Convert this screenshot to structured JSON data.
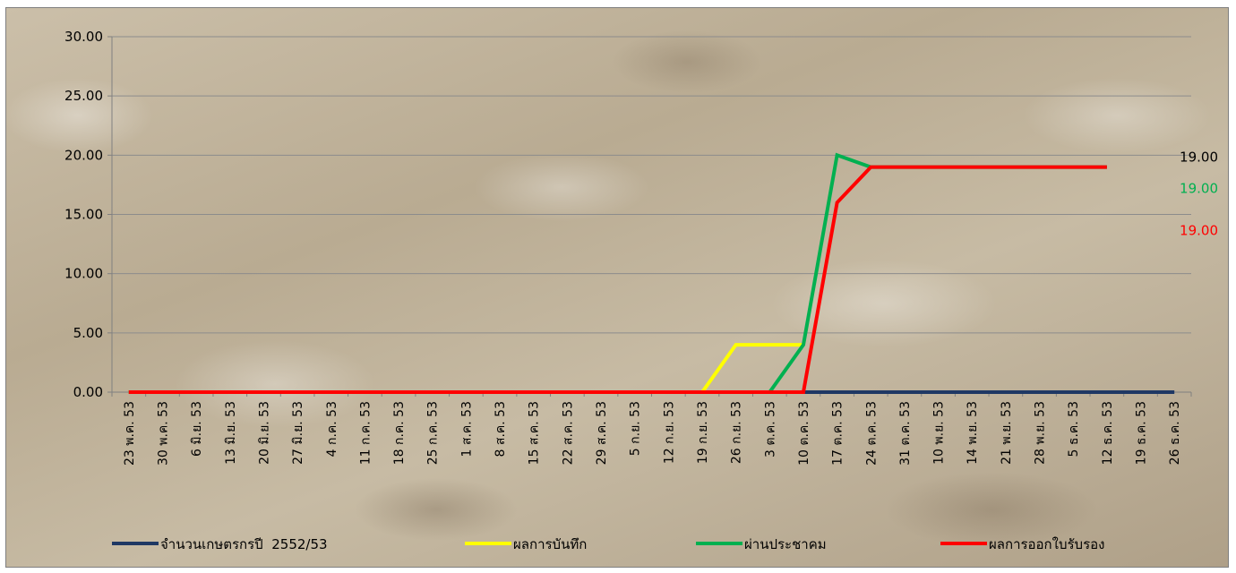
{
  "chart_data": {
    "type": "line",
    "title": "",
    "xlabel": "",
    "ylabel": "",
    "ylim": [
      0,
      30
    ],
    "y_ticks": [
      "0.00",
      "5.00",
      "10.00",
      "15.00",
      "20.00",
      "25.00",
      "30.00"
    ],
    "grid": true,
    "legend_position": "bottom",
    "categories": [
      "23 พ.ค. 53",
      "30 พ.ค. 53",
      "6 มิ.ย. 53",
      "13 มิ.ย. 53",
      "20 มิ.ย. 53",
      "27 มิ.ย. 53",
      "4 ก.ค. 53",
      "11 ก.ค. 53",
      "18 ก.ค. 53",
      "25 ก.ค. 53",
      "1 ส.ค. 53",
      "8 ส.ค. 53",
      "15 ส.ค. 53",
      "22 ส.ค. 53",
      "29 ส.ค. 53",
      "5 ก.ย. 53",
      "12 ก.ย. 53",
      "19 ก.ย. 53",
      "26 ก.ย. 53",
      "3 ต.ค. 53",
      "10 ต.ค. 53",
      "17 ต.ค. 53",
      "24 ต.ค. 53",
      "31 ต.ค. 53",
      "10 พ.ย. 53",
      "14 พ.ย. 53",
      "21 พ.ย. 53",
      "28 พ.ย. 53",
      "5 ธ.ค. 53",
      "12 ธ.ค. 53",
      "19 ธ.ค. 53",
      "26 ธ.ค. 53"
    ],
    "series": [
      {
        "name": "จำนวนเกษตรกรปี  2552/53",
        "color": "#1f3864",
        "values": [
          0,
          0,
          0,
          0,
          0,
          0,
          0,
          0,
          0,
          0,
          0,
          0,
          0,
          0,
          0,
          0,
          0,
          0,
          0,
          0,
          0,
          0,
          0,
          0,
          0,
          0,
          0,
          0,
          0,
          0,
          0,
          0
        ]
      },
      {
        "name": "ผลการบันทึก",
        "color": "#ffff00",
        "values": [
          0,
          0,
          0,
          0,
          0,
          0,
          0,
          0,
          0,
          0,
          0,
          0,
          0,
          0,
          0,
          0,
          0,
          0,
          4,
          4,
          4,
          null,
          null,
          null,
          null,
          null,
          null,
          null,
          null,
          null,
          null,
          null
        ]
      },
      {
        "name": "ผ่านประชาคม",
        "color": "#00b050",
        "values": [
          0,
          0,
          0,
          0,
          0,
          0,
          0,
          0,
          0,
          0,
          0,
          0,
          0,
          0,
          0,
          0,
          0,
          0,
          0,
          0,
          4,
          20,
          19,
          19,
          19,
          19,
          19,
          19,
          19,
          19,
          null,
          null
        ]
      },
      {
        "name": "ผลการออกใบรับรอง",
        "color": "#ff0000",
        "values": [
          0,
          0,
          0,
          0,
          0,
          0,
          0,
          0,
          0,
          0,
          0,
          0,
          0,
          0,
          0,
          0,
          0,
          0,
          0,
          0,
          0,
          16,
          19,
          19,
          19,
          19,
          19,
          19,
          19,
          19,
          null,
          null
        ]
      }
    ],
    "end_labels": [
      {
        "text": "19.00",
        "color": "#000000"
      },
      {
        "text": "19.00",
        "color": "#00b050"
      },
      {
        "text": "19.00",
        "color": "#ff0000"
      }
    ]
  }
}
